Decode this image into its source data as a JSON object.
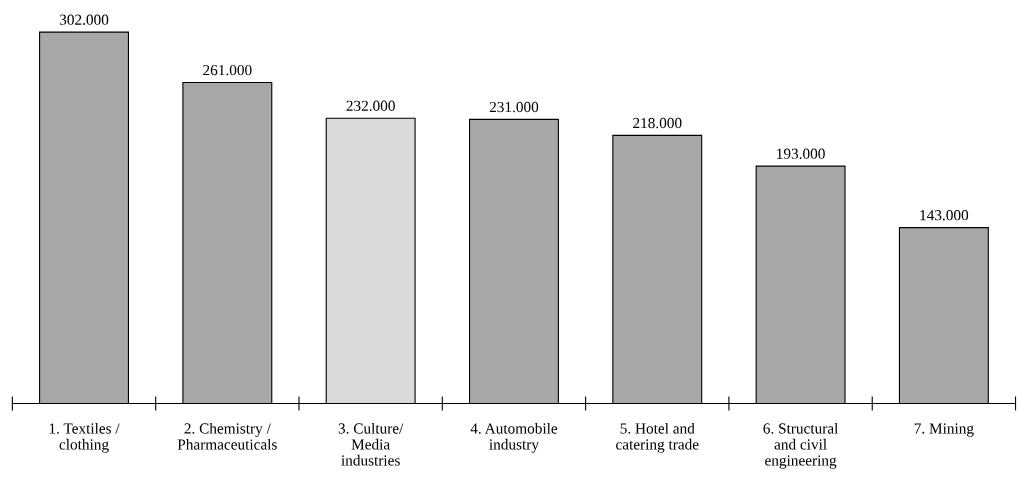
{
  "chart_data": {
    "type": "bar",
    "categories": [
      "1. Textiles /\nclothing",
      "2. Chemistry /\nPharmaceuticals",
      "3. Culture/\nMedia\nindustries",
      "4. Automobile\nindustry",
      "5. Hotel and\ncatering trade",
      "6. Structural\nand civil\nengineering",
      "7. Mining"
    ],
    "values": [
      302000,
      261000,
      232000,
      231000,
      218000,
      193000,
      143000
    ],
    "value_labels": [
      "302.000",
      "261.000",
      "232.000",
      "231.000",
      "218.000",
      "193.000",
      "143.000"
    ],
    "colors": [
      "#a8a8a8",
      "#a8a8a8",
      "#d9d9d9",
      "#a8a8a8",
      "#a8a8a8",
      "#a8a8a8",
      "#a8a8a8"
    ],
    "grid": false,
    "legend": false
  }
}
